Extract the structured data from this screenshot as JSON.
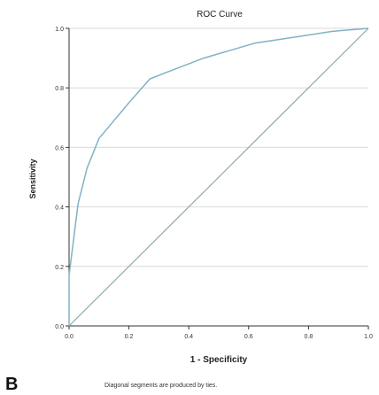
{
  "panel_label": "B",
  "footnote": "Diagonal segments are produced by ties.",
  "chart_data": {
    "type": "line",
    "title": "ROC Curve",
    "xlabel": "1 - Specificity",
    "ylabel": "Sensitivity",
    "xlim": [
      0,
      1
    ],
    "ylim": [
      0,
      1
    ],
    "xticks": [
      "0.0",
      "0.2",
      "0.4",
      "0.6",
      "0.8",
      "1.0"
    ],
    "yticks": [
      "0.0",
      "0.2",
      "0.4",
      "0.6",
      "0.8",
      "1.0"
    ],
    "grid": "horizontal",
    "colors": {
      "roc": "#7fb3c6",
      "reference": "#8aa8a8",
      "grid": "#d9d9d9",
      "axis": "#333333"
    },
    "series": [
      {
        "x": [
          0.0,
          0.0,
          0.03,
          0.06,
          0.1,
          0.15,
          0.2,
          0.27,
          0.32,
          0.45,
          0.62,
          0.75,
          0.88,
          1.0
        ],
        "y": [
          0.0,
          0.17,
          0.41,
          0.53,
          0.63,
          0.69,
          0.75,
          0.83,
          0.85,
          0.9,
          0.95,
          0.97,
          0.99,
          1.0
        ]
      },
      {
        "x": [
          0.0,
          1.0
        ],
        "y": [
          0.0,
          1.0
        ]
      }
    ]
  }
}
